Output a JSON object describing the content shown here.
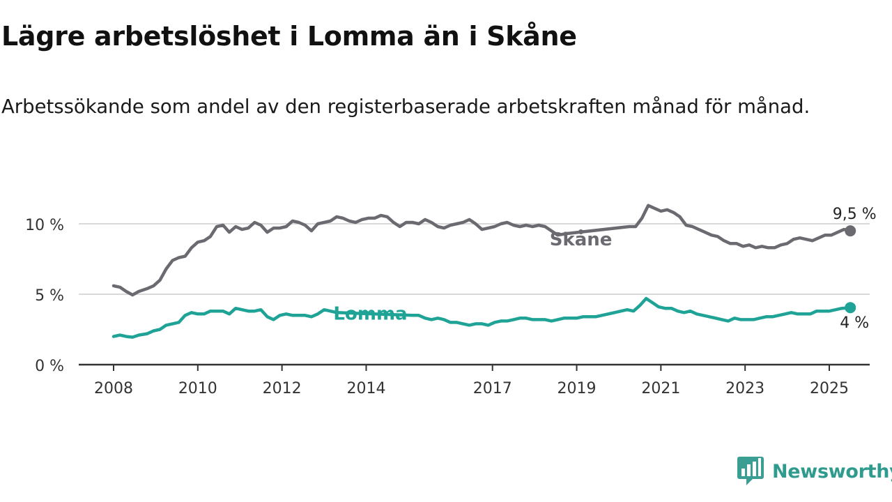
{
  "title": "Lägre arbetslöshet i Lomma än i Skåne",
  "subtitle": "Arbetssökande som andel av den registerbaserade arbetskraften månad för månad.",
  "brand": {
    "name": "Newsworthy",
    "logo_icon": "bar-chart-speech-bubble-icon",
    "color": "#3a9e93"
  },
  "chart_data": {
    "type": "line",
    "x_unit": "year",
    "xlim": [
      2008,
      2025.95
    ],
    "ylim": [
      0,
      11.5
    ],
    "x_ticks": [
      2008,
      2010,
      2012,
      2014,
      2017,
      2019,
      2021,
      2023,
      2025
    ],
    "x_tick_labels": [
      "2008",
      "2010",
      "2012",
      "2014",
      "2017",
      "2019",
      "2021",
      "2023",
      "2025"
    ],
    "y_ticks": [
      0,
      5,
      10
    ],
    "y_tick_labels": [
      "0 %",
      "5 %",
      "10 %"
    ],
    "grid": "horizontal",
    "legend": "inline labels",
    "series": [
      {
        "name": "Skåne",
        "color": "#6b6a70",
        "end_label": "9,5 %",
        "points": [
          [
            2008.0,
            5.6
          ],
          [
            2008.15,
            5.5
          ],
          [
            2008.3,
            5.2
          ],
          [
            2008.45,
            4.95
          ],
          [
            2008.6,
            5.2
          ],
          [
            2008.8,
            5.4
          ],
          [
            2008.95,
            5.6
          ],
          [
            2009.1,
            6.0
          ],
          [
            2009.25,
            6.8
          ],
          [
            2009.4,
            7.4
          ],
          [
            2009.55,
            7.6
          ],
          [
            2009.7,
            7.7
          ],
          [
            2009.85,
            8.3
          ],
          [
            2010.0,
            8.7
          ],
          [
            2010.15,
            8.8
          ],
          [
            2010.3,
            9.1
          ],
          [
            2010.45,
            9.8
          ],
          [
            2010.6,
            9.9
          ],
          [
            2010.75,
            9.4
          ],
          [
            2010.9,
            9.8
          ],
          [
            2011.05,
            9.6
          ],
          [
            2011.2,
            9.7
          ],
          [
            2011.35,
            10.1
          ],
          [
            2011.5,
            9.9
          ],
          [
            2011.65,
            9.4
          ],
          [
            2011.8,
            9.7
          ],
          [
            2011.95,
            9.7
          ],
          [
            2012.1,
            9.8
          ],
          [
            2012.25,
            10.2
          ],
          [
            2012.4,
            10.1
          ],
          [
            2012.55,
            9.9
          ],
          [
            2012.7,
            9.5
          ],
          [
            2012.85,
            10.0
          ],
          [
            2013.0,
            10.1
          ],
          [
            2013.15,
            10.2
          ],
          [
            2013.3,
            10.5
          ],
          [
            2013.45,
            10.4
          ],
          [
            2013.6,
            10.2
          ],
          [
            2013.75,
            10.1
          ],
          [
            2013.9,
            10.3
          ],
          [
            2014.05,
            10.4
          ],
          [
            2014.2,
            10.4
          ],
          [
            2014.35,
            10.6
          ],
          [
            2014.5,
            10.5
          ],
          [
            2014.65,
            10.1
          ],
          [
            2014.8,
            9.8
          ],
          [
            2014.95,
            10.1
          ],
          [
            2015.1,
            10.1
          ],
          [
            2015.25,
            10.0
          ],
          [
            2015.4,
            10.3
          ],
          [
            2015.55,
            10.1
          ],
          [
            2015.7,
            9.8
          ],
          [
            2015.85,
            9.7
          ],
          [
            2016.0,
            9.9
          ],
          [
            2016.15,
            10.0
          ],
          [
            2016.3,
            10.1
          ],
          [
            2016.45,
            10.3
          ],
          [
            2016.6,
            10.0
          ],
          [
            2016.75,
            9.6
          ],
          [
            2016.9,
            9.7
          ],
          [
            2017.05,
            9.8
          ],
          [
            2017.2,
            10.0
          ],
          [
            2017.35,
            10.1
          ],
          [
            2017.5,
            9.9
          ],
          [
            2017.65,
            9.8
          ],
          [
            2017.8,
            9.9
          ],
          [
            2017.95,
            9.8
          ],
          [
            2018.1,
            9.9
          ],
          [
            2018.25,
            9.8
          ],
          [
            2018.4,
            9.5
          ],
          [
            2018.55,
            9.2
          ],
          [
            2018.75,
            9.3
          ],
          [
            2020.25,
            9.8
          ],
          [
            2020.4,
            9.8
          ],
          [
            2020.55,
            10.4
          ],
          [
            2020.7,
            11.3
          ],
          [
            2020.85,
            11.1
          ],
          [
            2021.0,
            10.9
          ],
          [
            2021.15,
            11.0
          ],
          [
            2021.3,
            10.8
          ],
          [
            2021.45,
            10.5
          ],
          [
            2021.6,
            9.9
          ],
          [
            2021.75,
            9.8
          ],
          [
            2021.9,
            9.6
          ],
          [
            2022.05,
            9.4
          ],
          [
            2022.2,
            9.2
          ],
          [
            2022.35,
            9.1
          ],
          [
            2022.5,
            8.8
          ],
          [
            2022.65,
            8.6
          ],
          [
            2022.8,
            8.6
          ],
          [
            2022.95,
            8.4
          ],
          [
            2023.1,
            8.5
          ],
          [
            2023.25,
            8.3
          ],
          [
            2023.4,
            8.4
          ],
          [
            2023.55,
            8.3
          ],
          [
            2023.7,
            8.3
          ],
          [
            2023.85,
            8.5
          ],
          [
            2024.0,
            8.6
          ],
          [
            2024.15,
            8.9
          ],
          [
            2024.3,
            9.0
          ],
          [
            2024.45,
            8.9
          ],
          [
            2024.6,
            8.8
          ],
          [
            2024.75,
            9.0
          ],
          [
            2024.9,
            9.2
          ],
          [
            2025.05,
            9.2
          ],
          [
            2025.2,
            9.4
          ],
          [
            2025.35,
            9.6
          ],
          [
            2025.5,
            9.5
          ]
        ]
      },
      {
        "name": "Lomma",
        "color": "#1fa396",
        "end_label": "4 %",
        "points": [
          [
            2008.0,
            2.0
          ],
          [
            2008.15,
            2.1
          ],
          [
            2008.3,
            2.0
          ],
          [
            2008.45,
            1.95
          ],
          [
            2008.6,
            2.1
          ],
          [
            2008.8,
            2.2
          ],
          [
            2008.95,
            2.4
          ],
          [
            2009.1,
            2.5
          ],
          [
            2009.25,
            2.8
          ],
          [
            2009.4,
            2.9
          ],
          [
            2009.55,
            3.0
          ],
          [
            2009.7,
            3.5
          ],
          [
            2009.85,
            3.7
          ],
          [
            2010.0,
            3.6
          ],
          [
            2010.15,
            3.6
          ],
          [
            2010.3,
            3.8
          ],
          [
            2010.45,
            3.8
          ],
          [
            2010.6,
            3.8
          ],
          [
            2010.75,
            3.6
          ],
          [
            2010.9,
            4.0
          ],
          [
            2011.05,
            3.9
          ],
          [
            2011.2,
            3.8
          ],
          [
            2011.35,
            3.8
          ],
          [
            2011.5,
            3.9
          ],
          [
            2011.65,
            3.4
          ],
          [
            2011.8,
            3.2
          ],
          [
            2011.95,
            3.5
          ],
          [
            2012.1,
            3.6
          ],
          [
            2012.25,
            3.5
          ],
          [
            2012.4,
            3.5
          ],
          [
            2012.55,
            3.5
          ],
          [
            2012.7,
            3.4
          ],
          [
            2012.85,
            3.6
          ],
          [
            2013.0,
            3.9
          ],
          [
            2013.15,
            3.8
          ],
          [
            2013.3,
            3.7
          ],
          [
            2015.1,
            3.5
          ],
          [
            2015.25,
            3.5
          ],
          [
            2015.4,
            3.3
          ],
          [
            2015.55,
            3.2
          ],
          [
            2015.7,
            3.3
          ],
          [
            2015.85,
            3.2
          ],
          [
            2016.0,
            3.0
          ],
          [
            2016.15,
            3.0
          ],
          [
            2016.3,
            2.9
          ],
          [
            2016.45,
            2.8
          ],
          [
            2016.6,
            2.9
          ],
          [
            2016.75,
            2.9
          ],
          [
            2016.9,
            2.8
          ],
          [
            2017.05,
            3.0
          ],
          [
            2017.2,
            3.1
          ],
          [
            2017.35,
            3.1
          ],
          [
            2017.5,
            3.2
          ],
          [
            2017.65,
            3.3
          ],
          [
            2017.8,
            3.3
          ],
          [
            2017.95,
            3.2
          ],
          [
            2018.1,
            3.2
          ],
          [
            2018.25,
            3.2
          ],
          [
            2018.4,
            3.1
          ],
          [
            2018.55,
            3.2
          ],
          [
            2018.7,
            3.3
          ],
          [
            2018.85,
            3.3
          ],
          [
            2019.0,
            3.3
          ],
          [
            2019.15,
            3.4
          ],
          [
            2019.3,
            3.4
          ],
          [
            2019.45,
            3.4
          ],
          [
            2019.6,
            3.5
          ],
          [
            2019.75,
            3.6
          ],
          [
            2019.9,
            3.7
          ],
          [
            2020.05,
            3.8
          ],
          [
            2020.2,
            3.9
          ],
          [
            2020.35,
            3.8
          ],
          [
            2020.5,
            4.2
          ],
          [
            2020.65,
            4.7
          ],
          [
            2020.8,
            4.4
          ],
          [
            2020.95,
            4.1
          ],
          [
            2021.1,
            4.0
          ],
          [
            2021.25,
            4.0
          ],
          [
            2021.4,
            3.8
          ],
          [
            2021.55,
            3.7
          ],
          [
            2021.7,
            3.8
          ],
          [
            2021.85,
            3.6
          ],
          [
            2022.0,
            3.5
          ],
          [
            2022.15,
            3.4
          ],
          [
            2022.3,
            3.3
          ],
          [
            2022.45,
            3.2
          ],
          [
            2022.6,
            3.1
          ],
          [
            2022.75,
            3.3
          ],
          [
            2022.9,
            3.2
          ],
          [
            2023.05,
            3.2
          ],
          [
            2023.2,
            3.2
          ],
          [
            2023.35,
            3.3
          ],
          [
            2023.5,
            3.4
          ],
          [
            2023.65,
            3.4
          ],
          [
            2023.8,
            3.5
          ],
          [
            2023.95,
            3.6
          ],
          [
            2024.1,
            3.7
          ],
          [
            2024.25,
            3.6
          ],
          [
            2024.4,
            3.6
          ],
          [
            2024.55,
            3.6
          ],
          [
            2024.7,
            3.8
          ],
          [
            2024.85,
            3.8
          ],
          [
            2025.0,
            3.8
          ],
          [
            2025.15,
            3.9
          ],
          [
            2025.3,
            4.0
          ],
          [
            2025.5,
            4.05
          ]
        ]
      }
    ]
  }
}
